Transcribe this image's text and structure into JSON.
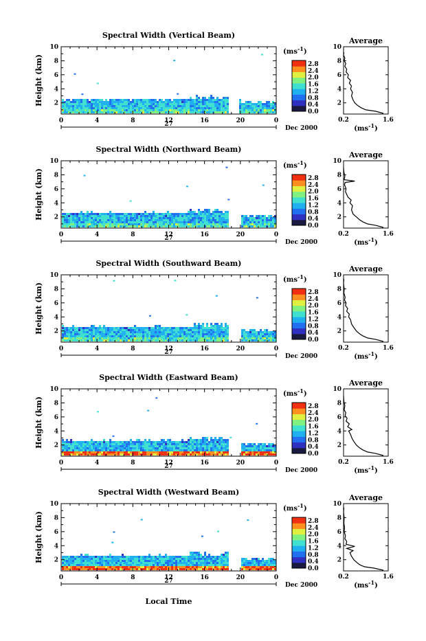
{
  "page": {
    "xlabel": "Local Time",
    "date_label": "Dec 2000",
    "day_label": "27",
    "units_label": "(ms",
    "units_exp": "-1",
    "units_close": ")",
    "average_title": "Average",
    "average_xlabel": "(ms",
    "ylabel": "Height (km)"
  },
  "chart_data": [
    {
      "type": "heatmap",
      "title": "Spectral Width (Vertical Beam)",
      "ylabel": "Height (km)",
      "xlabel": "Local Time",
      "x_ticks": [
        "0",
        "4",
        "8",
        "12",
        "16",
        "20",
        "0"
      ],
      "xlim": [
        0,
        24
      ],
      "y_ticks": [
        "2",
        "4",
        "6",
        "8",
        "10"
      ],
      "ylim": [
        0.4,
        10
      ],
      "colorbar": {
        "ticks": [
          "0.0",
          "0.4",
          "0.8",
          "1.2",
          "1.6",
          "2.0",
          "2.4",
          "2.8"
        ],
        "range": [
          0,
          3.0
        ],
        "colors": [
          "#1a1a40",
          "#3030c0",
          "#2070f0",
          "#20b0f0",
          "#40e0d0",
          "#80f080",
          "#e0f040",
          "#ff9020",
          "#f03010"
        ]
      },
      "field": {
        "layer_top_km": 2.5,
        "gap_hours": [
          18.6,
          19.8
        ],
        "heavy_low_level": false
      },
      "average": {
        "xlim": [
          0.2,
          1.6
        ],
        "x_ticks": [
          "0.2",
          "1.6"
        ],
        "y_ticks": [
          "2",
          "4",
          "6",
          "8",
          "10"
        ],
        "profile": [
          [
            1.45,
            0.5
          ],
          [
            1.2,
            0.8
          ],
          [
            0.9,
            1.0
          ],
          [
            0.75,
            1.3
          ],
          [
            0.65,
            1.6
          ],
          [
            0.55,
            2.0
          ],
          [
            0.5,
            2.4
          ],
          [
            0.45,
            3.0
          ],
          [
            0.48,
            3.5
          ],
          [
            0.42,
            4.0
          ],
          [
            0.45,
            4.4
          ],
          [
            0.38,
            4.8
          ],
          [
            0.42,
            5.2
          ],
          [
            0.33,
            5.6
          ],
          [
            0.35,
            6.0
          ],
          [
            0.28,
            6.4
          ],
          [
            0.3,
            6.8
          ],
          [
            0.24,
            7.2
          ],
          [
            0.27,
            7.6
          ],
          [
            0.22,
            8.0
          ],
          [
            0.24,
            8.4
          ],
          [
            0.2,
            8.8
          ],
          [
            0.21,
            9.2
          ]
        ]
      }
    },
    {
      "type": "heatmap",
      "title": "Spectral Width (Northward Beam)",
      "ylabel": "Height (km)",
      "xlabel": "Local Time",
      "x_ticks": [
        "0",
        "4",
        "8",
        "12",
        "16",
        "20",
        "0"
      ],
      "xlim": [
        0,
        24
      ],
      "y_ticks": [
        "2",
        "4",
        "6",
        "8",
        "10"
      ],
      "ylim": [
        0.4,
        10
      ],
      "colorbar": {
        "ticks": [
          "0.0",
          "0.4",
          "0.8",
          "1.2",
          "1.6",
          "2.0",
          "2.4",
          "2.8"
        ],
        "range": [
          0,
          3.0
        ],
        "colors": [
          "#1a1a40",
          "#3030c0",
          "#2070f0",
          "#20b0f0",
          "#40e0d0",
          "#80f080",
          "#e0f040",
          "#ff9020",
          "#f03010"
        ]
      },
      "field": {
        "layer_top_km": 2.6,
        "gap_hours": [
          18.7,
          20.0
        ],
        "heavy_low_level": false
      },
      "average": {
        "xlim": [
          0.2,
          1.6
        ],
        "x_ticks": [
          "0.2",
          "1.6"
        ],
        "y_ticks": [
          "2",
          "4",
          "6",
          "8",
          "10"
        ],
        "profile": [
          [
            1.45,
            0.5
          ],
          [
            1.2,
            0.8
          ],
          [
            0.95,
            1.0
          ],
          [
            0.8,
            1.3
          ],
          [
            0.7,
            1.6
          ],
          [
            0.6,
            2.0
          ],
          [
            0.5,
            2.4
          ],
          [
            0.45,
            3.0
          ],
          [
            0.48,
            3.6
          ],
          [
            0.4,
            4.0
          ],
          [
            0.44,
            4.4
          ],
          [
            0.34,
            4.8
          ],
          [
            0.3,
            5.2
          ],
          [
            0.26,
            5.6
          ],
          [
            0.28,
            6.0
          ],
          [
            0.23,
            6.6
          ],
          [
            0.25,
            6.9
          ],
          [
            0.55,
            7.1
          ],
          [
            0.22,
            7.3
          ],
          [
            0.24,
            7.8
          ],
          [
            0.21,
            8.4
          ],
          [
            0.2,
            9.0
          ]
        ]
      }
    },
    {
      "type": "heatmap",
      "title": "Spectral Width (Southward Beam)",
      "ylabel": "Height (km)",
      "xlabel": "Local Time",
      "x_ticks": [
        "0",
        "4",
        "8",
        "12",
        "16",
        "20",
        "0"
      ],
      "xlim": [
        0,
        24
      ],
      "y_ticks": [
        "2",
        "4",
        "6",
        "8",
        "10"
      ],
      "ylim": [
        0.4,
        10
      ],
      "colorbar": {
        "ticks": [
          "0.0",
          "0.4",
          "0.8",
          "1.2",
          "1.6",
          "2.0",
          "2.4",
          "2.8"
        ],
        "range": [
          0,
          3.0
        ],
        "colors": [
          "#1a1a40",
          "#3030c0",
          "#2070f0",
          "#20b0f0",
          "#40e0d0",
          "#80f080",
          "#e0f040",
          "#ff9020",
          "#f03010"
        ]
      },
      "field": {
        "layer_top_km": 2.6,
        "gap_hours": [
          18.6,
          20.0
        ],
        "heavy_low_level": false
      },
      "average": {
        "xlim": [
          0.2,
          1.6
        ],
        "x_ticks": [
          "0.2",
          "1.6"
        ],
        "y_ticks": [
          "2",
          "4",
          "6",
          "8",
          "10"
        ],
        "profile": [
          [
            1.45,
            0.5
          ],
          [
            1.2,
            0.8
          ],
          [
            0.95,
            1.0
          ],
          [
            0.8,
            1.3
          ],
          [
            0.7,
            1.6
          ],
          [
            0.6,
            2.0
          ],
          [
            0.52,
            2.5
          ],
          [
            0.45,
            3.0
          ],
          [
            0.42,
            3.6
          ],
          [
            0.36,
            4.0
          ],
          [
            0.38,
            4.4
          ],
          [
            0.3,
            4.8
          ],
          [
            0.33,
            5.2
          ],
          [
            0.26,
            5.6
          ],
          [
            0.28,
            6.0
          ],
          [
            0.23,
            6.4
          ],
          [
            0.25,
            6.8
          ],
          [
            0.21,
            7.4
          ],
          [
            0.22,
            8.0
          ],
          [
            0.2,
            8.8
          ],
          [
            0.21,
            9.4
          ]
        ]
      }
    },
    {
      "type": "heatmap",
      "title": "Spectral Width (Eastward Beam)",
      "ylabel": "Height (km)",
      "xlabel": "Local Time",
      "x_ticks": [
        "0",
        "4",
        "8",
        "12",
        "16",
        "20",
        "0"
      ],
      "xlim": [
        0,
        24
      ],
      "y_ticks": [
        "2",
        "4",
        "6",
        "8",
        "10"
      ],
      "ylim": [
        0.4,
        10
      ],
      "colorbar": {
        "ticks": [
          "0.0",
          "0.4",
          "0.8",
          "1.2",
          "1.6",
          "2.0",
          "2.4",
          "2.8"
        ],
        "range": [
          0,
          3.0
        ],
        "colors": [
          "#1a1a40",
          "#3030c0",
          "#2070f0",
          "#20b0f0",
          "#40e0d0",
          "#80f080",
          "#e0f040",
          "#ff9020",
          "#f03010"
        ]
      },
      "field": {
        "layer_top_km": 2.6,
        "gap_hours": [
          18.7,
          20.0
        ],
        "heavy_low_level": true
      },
      "average": {
        "xlim": [
          0.2,
          1.6
        ],
        "x_ticks": [
          "0.2",
          "1.6"
        ],
        "y_ticks": [
          "2",
          "4",
          "6",
          "8",
          "10"
        ],
        "profile": [
          [
            1.45,
            0.5
          ],
          [
            1.2,
            0.8
          ],
          [
            0.95,
            1.0
          ],
          [
            0.8,
            1.3
          ],
          [
            0.7,
            1.6
          ],
          [
            0.6,
            2.0
          ],
          [
            0.52,
            2.5
          ],
          [
            0.46,
            3.0
          ],
          [
            0.42,
            3.5
          ],
          [
            0.36,
            4.0
          ],
          [
            0.46,
            4.2
          ],
          [
            0.33,
            4.6
          ],
          [
            0.38,
            5.0
          ],
          [
            0.28,
            5.4
          ],
          [
            0.31,
            5.8
          ],
          [
            0.25,
            6.2
          ],
          [
            0.27,
            6.6
          ],
          [
            0.22,
            7.0
          ],
          [
            0.24,
            7.6
          ],
          [
            0.21,
            8.2
          ],
          [
            0.2,
            9.0
          ]
        ]
      }
    },
    {
      "type": "heatmap",
      "title": "Spectral Width (Westward Beam)",
      "ylabel": "Height (km)",
      "xlabel": "Local Time",
      "x_ticks": [
        "0",
        "4",
        "8",
        "12",
        "16",
        "20",
        "0"
      ],
      "xlim": [
        0,
        24
      ],
      "y_ticks": [
        "2",
        "4",
        "6",
        "8",
        "10"
      ],
      "ylim": [
        0.4,
        10
      ],
      "colorbar": {
        "ticks": [
          "0.0",
          "0.4",
          "0.8",
          "1.2",
          "1.6",
          "2.0",
          "2.4",
          "2.8"
        ],
        "range": [
          0,
          3.0
        ],
        "colors": [
          "#1a1a40",
          "#3030c0",
          "#2070f0",
          "#20b0f0",
          "#40e0d0",
          "#80f080",
          "#e0f040",
          "#ff9020",
          "#f03010"
        ]
      },
      "field": {
        "layer_top_km": 2.6,
        "gap_hours": [
          18.6,
          20.0
        ],
        "heavy_low_level": true
      },
      "average": {
        "xlim": [
          0.2,
          1.6
        ],
        "x_ticks": [
          "0.2",
          "1.6"
        ],
        "y_ticks": [
          "2",
          "4",
          "6",
          "8",
          "10"
        ],
        "profile": [
          [
            1.45,
            0.5
          ],
          [
            1.15,
            0.8
          ],
          [
            0.85,
            1.0
          ],
          [
            0.7,
            1.3
          ],
          [
            0.62,
            1.6
          ],
          [
            0.52,
            2.0
          ],
          [
            0.45,
            2.5
          ],
          [
            0.4,
            3.0
          ],
          [
            0.5,
            3.3
          ],
          [
            0.3,
            3.6
          ],
          [
            0.55,
            3.9
          ],
          [
            0.28,
            4.2
          ],
          [
            0.3,
            4.6
          ],
          [
            0.24,
            5.0
          ],
          [
            0.26,
            5.4
          ],
          [
            0.22,
            6.0
          ],
          [
            0.23,
            6.6
          ],
          [
            0.21,
            7.2
          ],
          [
            0.22,
            8.0
          ],
          [
            0.2,
            8.8
          ],
          [
            0.21,
            9.4
          ]
        ]
      }
    }
  ]
}
